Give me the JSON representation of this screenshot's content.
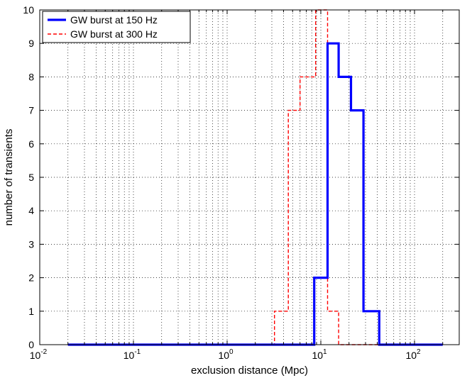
{
  "chart_data": {
    "type": "line",
    "title": "",
    "xlabel": "exclusion distance (Mpc)",
    "ylabel": "number of transients",
    "xscale": "log",
    "xlim": [
      0.01,
      300
    ],
    "ylim": [
      0,
      10
    ],
    "grid": true,
    "legend_position": "top-left",
    "x_tick_labels": [
      {
        "base": "10",
        "exp": "-2",
        "value": 0.01
      },
      {
        "base": "10",
        "exp": "-1",
        "value": 0.1
      },
      {
        "base": "10",
        "exp": "0",
        "value": 1
      },
      {
        "base": "10",
        "exp": "1",
        "value": 10
      },
      {
        "base": "10",
        "exp": "2",
        "value": 100
      }
    ],
    "y_tick_labels": [
      "0",
      "1",
      "2",
      "3",
      "4",
      "5",
      "6",
      "7",
      "8",
      "9",
      "10"
    ],
    "series": [
      {
        "name": "GW burst at 150 Hz",
        "color": "#0000ff",
        "style": "solid",
        "x": [
          0.02,
          8.5,
          8.5,
          11.8,
          11.8,
          15.5,
          15.5,
          21,
          21,
          28.5,
          28.5,
          42,
          42,
          200
        ],
        "y": [
          0,
          0,
          2,
          2,
          9,
          9,
          8,
          8,
          7,
          7,
          1,
          1,
          0,
          0
        ]
      },
      {
        "name": "GW burst at 300 Hz",
        "color": "#ff0000",
        "style": "dashed",
        "x": [
          0.02,
          3.2,
          3.2,
          4.5,
          4.5,
          6.0,
          6.0,
          8.8,
          8.8,
          11.8,
          11.8,
          15.5,
          15.5,
          200
        ],
        "y": [
          0,
          0,
          1,
          1,
          7,
          7,
          8,
          8,
          10,
          10,
          1,
          1,
          0,
          0
        ]
      }
    ]
  }
}
